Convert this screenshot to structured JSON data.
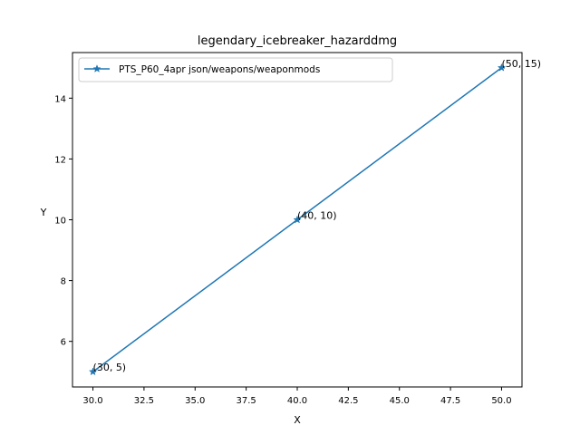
{
  "chart_data": {
    "type": "line",
    "title": "legendary_icebreaker_hazarddmg",
    "xlabel": "X",
    "ylabel": "Y",
    "xlim": [
      29.0,
      51.0
    ],
    "ylim": [
      4.5,
      15.5
    ],
    "xticks": [
      "30.0",
      "32.5",
      "35.0",
      "37.5",
      "40.0",
      "42.5",
      "45.0",
      "47.5",
      "50.0"
    ],
    "yticks": [
      "6",
      "8",
      "10",
      "12",
      "14"
    ],
    "grid": false,
    "legend_position": "top-left",
    "series": [
      {
        "name": "PTS_P60_4apr json/weapons/weaponmods",
        "color": "#1f77b4",
        "marker": "star",
        "x": [
          30,
          40,
          50
        ],
        "y": [
          5,
          10,
          15
        ],
        "point_labels": [
          "(30, 5)",
          "(40, 10)",
          "(50, 15)"
        ]
      }
    ]
  }
}
